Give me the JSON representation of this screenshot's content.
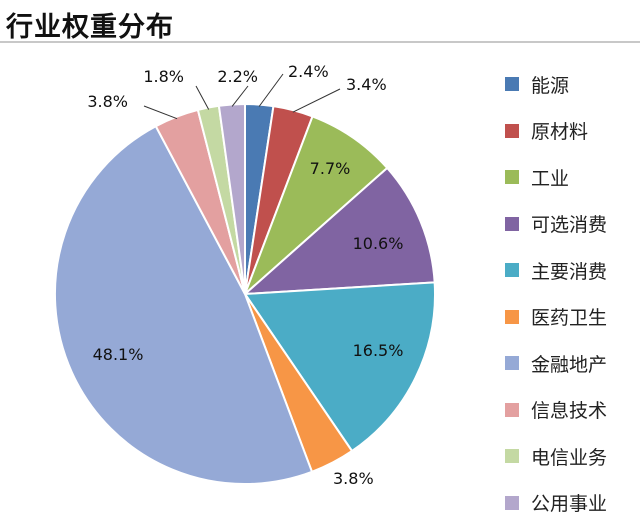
{
  "header": {
    "title": "行业权重分布"
  },
  "chart_data": {
    "type": "pie",
    "title": "行业权重分布",
    "legend_position": "right",
    "slices": [
      {
        "label": "能源",
        "value": 2.4,
        "display": "2.4%",
        "color": "#4a7ab3"
      },
      {
        "label": "原材料",
        "value": 3.4,
        "display": "3.4%",
        "color": "#c0504d"
      },
      {
        "label": "工业",
        "value": 7.7,
        "display": "7.7%",
        "color": "#9bbb59"
      },
      {
        "label": "可选消费",
        "value": 10.6,
        "display": "10.6%",
        "color": "#8064a2"
      },
      {
        "label": "主要消费",
        "value": 16.5,
        "display": "16.5%",
        "color": "#4bacc6"
      },
      {
        "label": "医药卫生",
        "value": 3.8,
        "display": "3.8%",
        "color": "#f79646"
      },
      {
        "label": "金融地产",
        "value": 48.1,
        "display": "48.1%",
        "color": "#95a9d6"
      },
      {
        "label": "信息技术",
        "value": 3.8,
        "display": "3.8%",
        "color": "#e3a0a0"
      },
      {
        "label": "电信业务",
        "value": 1.8,
        "display": "1.8%",
        "color": "#c4d9a3"
      },
      {
        "label": "公用事业",
        "value": 2.2,
        "display": "2.2%",
        "color": "#b3a7cc"
      }
    ]
  }
}
